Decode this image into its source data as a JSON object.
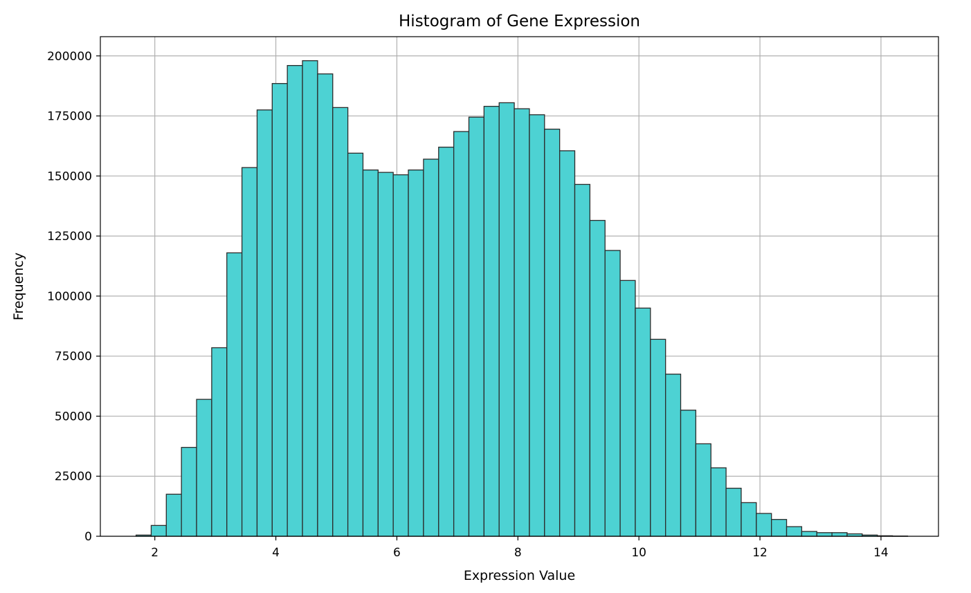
{
  "chart_data": {
    "type": "bar",
    "title": "Histogram of Gene Expression",
    "xlabel": "Expression Value",
    "ylabel": "Frequency",
    "xlim": [
      1.1,
      14.95
    ],
    "ylim": [
      0,
      208000
    ],
    "x_ticks": [
      2,
      4,
      6,
      8,
      10,
      12,
      14
    ],
    "x_tick_labels": [
      "2",
      "4",
      "6",
      "8",
      "10",
      "12",
      "14"
    ],
    "y_ticks": [
      0,
      25000,
      50000,
      75000,
      100000,
      125000,
      150000,
      175000,
      200000
    ],
    "y_tick_labels": [
      "0",
      "25000",
      "50000",
      "75000",
      "100000",
      "125000",
      "150000",
      "175000",
      "200000"
    ],
    "grid": true,
    "bar_color": "#4dd2d3",
    "edge_color": "#2b2b2b",
    "bin_edges": [
      1.69,
      1.94,
      2.19,
      2.44,
      2.69,
      2.94,
      3.19,
      3.44,
      3.69,
      3.94,
      4.19,
      4.44,
      4.69,
      4.94,
      5.19,
      5.44,
      5.69,
      5.94,
      6.19,
      6.44,
      6.69,
      6.94,
      7.19,
      7.44,
      7.69,
      7.94,
      8.19,
      8.44,
      8.69,
      8.94,
      9.19,
      9.44,
      9.69,
      9.94,
      10.19,
      10.44,
      10.69,
      10.94,
      11.19,
      11.44,
      11.69,
      11.94,
      12.19,
      12.44,
      12.69,
      12.94,
      13.19,
      13.44,
      13.69,
      13.94,
      14.19,
      14.44
    ],
    "values": [
      500,
      4500,
      17500,
      37000,
      57000,
      78500,
      118000,
      153500,
      177500,
      188500,
      196000,
      198000,
      192500,
      178500,
      159500,
      152500,
      151500,
      150500,
      152500,
      157000,
      162000,
      168500,
      174500,
      179000,
      180500,
      178000,
      175500,
      169500,
      160500,
      146500,
      131500,
      119000,
      106500,
      95000,
      82000,
      67500,
      52500,
      38500,
      28500,
      20000,
      14000,
      9500,
      7000,
      4000,
      2000,
      1500,
      1500,
      1000,
      500,
      200,
      100
    ]
  }
}
